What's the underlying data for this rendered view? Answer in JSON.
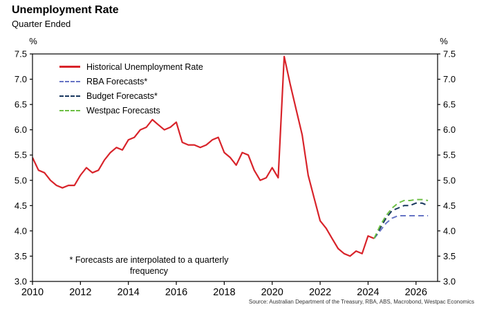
{
  "header": {
    "title": "Unemployment Rate",
    "subtitle": "Quarter Ended"
  },
  "axis_units": {
    "left": "%",
    "right": "%"
  },
  "legend": [
    {
      "label": "Historical Unemployment Rate",
      "color": "#d8232a",
      "dash": "solid"
    },
    {
      "label": "RBA Forecasts*",
      "color": "#6674c4",
      "dash": "dashed"
    },
    {
      "label": "Budget Forecasts*",
      "color": "#17365d",
      "dash": "dashed"
    },
    {
      "label": "Westpac Forecasts",
      "color": "#6cbf44",
      "dash": "dashed"
    }
  ],
  "footnote": {
    "line1": "* Forecasts are interpolated to a quarterly",
    "line2": "frequency"
  },
  "source": "Source: Australian Department of the Treasury, RBA, ABS, Macrobond, Westpac Economics",
  "chart_data": {
    "type": "line",
    "title": "Unemployment Rate",
    "subtitle": "Quarter Ended",
    "ylabel": "%",
    "ylim": [
      3.0,
      7.5
    ],
    "ytick_step": 0.5,
    "xlim": [
      2010,
      2026.9
    ],
    "xticks": [
      2010,
      2012,
      2014,
      2016,
      2018,
      2020,
      2022,
      2024,
      2026
    ],
    "grid": false,
    "legend_position": "upper-left",
    "series": [
      {
        "name": "Historical Unemployment Rate",
        "color": "#d8232a",
        "style": "solid",
        "width": 2.2,
        "x": [
          2010,
          2010.25,
          2010.5,
          2010.75,
          2011,
          2011.25,
          2011.5,
          2011.75,
          2012,
          2012.25,
          2012.5,
          2012.75,
          2013,
          2013.25,
          2013.5,
          2013.75,
          2014,
          2014.25,
          2014.5,
          2014.75,
          2015,
          2015.25,
          2015.5,
          2015.75,
          2016,
          2016.25,
          2016.5,
          2016.75,
          2017,
          2017.25,
          2017.5,
          2017.75,
          2018,
          2018.25,
          2018.5,
          2018.75,
          2019,
          2019.25,
          2019.5,
          2019.75,
          2020,
          2020.25,
          2020.5,
          2020.75,
          2021,
          2021.25,
          2021.5,
          2021.75,
          2022,
          2022.25,
          2022.5,
          2022.75,
          2023,
          2023.25,
          2023.5,
          2023.75,
          2024,
          2024.25
        ],
        "y": [
          5.45,
          5.2,
          5.15,
          5.0,
          4.9,
          4.85,
          4.9,
          4.9,
          5.1,
          5.25,
          5.15,
          5.2,
          5.4,
          5.55,
          5.65,
          5.6,
          5.8,
          5.85,
          6.0,
          6.05,
          6.2,
          6.1,
          6.0,
          6.05,
          6.15,
          5.75,
          5.7,
          5.7,
          5.65,
          5.7,
          5.8,
          5.85,
          5.55,
          5.45,
          5.3,
          5.55,
          5.5,
          5.2,
          5.0,
          5.05,
          5.25,
          5.05,
          7.45,
          6.9,
          6.4,
          5.9,
          5.1,
          4.65,
          4.2,
          4.05,
          3.85,
          3.65,
          3.55,
          3.5,
          3.6,
          3.55,
          3.9,
          3.85
        ]
      },
      {
        "name": "RBA Forecasts*",
        "color": "#6674c4",
        "style": "dashed",
        "width": 2,
        "x": [
          2024.25,
          2024.5,
          2024.75,
          2025,
          2025.25,
          2025.5,
          2025.75,
          2026,
          2026.25,
          2026.5
        ],
        "y": [
          3.85,
          4.0,
          4.15,
          4.25,
          4.3,
          4.3,
          4.3,
          4.3,
          4.3,
          4.3
        ]
      },
      {
        "name": "Budget Forecasts*",
        "color": "#17365d",
        "style": "dashed",
        "width": 2,
        "x": [
          2024.25,
          2024.5,
          2024.75,
          2025,
          2025.25,
          2025.5,
          2025.75,
          2026,
          2026.25,
          2026.5
        ],
        "y": [
          3.85,
          4.05,
          4.25,
          4.4,
          4.45,
          4.5,
          4.5,
          4.55,
          4.55,
          4.5
        ]
      },
      {
        "name": "Westpac Forecasts",
        "color": "#6cbf44",
        "style": "dashed",
        "width": 2,
        "x": [
          2024.25,
          2024.5,
          2024.75,
          2025,
          2025.25,
          2025.5,
          2025.75,
          2026,
          2026.25,
          2026.5
        ],
        "y": [
          3.85,
          4.1,
          4.3,
          4.45,
          4.55,
          4.6,
          4.6,
          4.62,
          4.62,
          4.6
        ]
      }
    ]
  }
}
